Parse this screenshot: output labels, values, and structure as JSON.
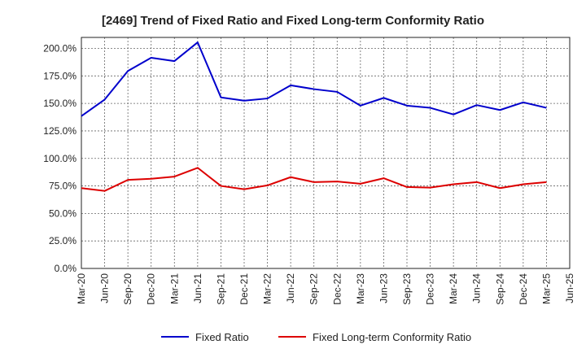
{
  "chart_data": {
    "type": "line",
    "title": "[2469]  Trend of Fixed Ratio and Fixed Long-term Conformity Ratio",
    "xlabel": "",
    "ylabel": "",
    "x_ticks": [
      "Mar-20",
      "Jun-20",
      "Sep-20",
      "Dec-20",
      "Mar-21",
      "Jun-21",
      "Sep-21",
      "Dec-21",
      "Mar-22",
      "Jun-22",
      "Sep-22",
      "Dec-22",
      "Mar-23",
      "Jun-23",
      "Sep-23",
      "Dec-23",
      "Mar-24",
      "Jun-24",
      "Sep-24",
      "Dec-24",
      "Mar-25",
      "Jun-25"
    ],
    "categories": [
      "Mar-20",
      "Jun-20",
      "Sep-20",
      "Dec-20",
      "Mar-21",
      "Jun-21",
      "Sep-21",
      "Dec-21",
      "Mar-22",
      "Jun-22",
      "Sep-22",
      "Dec-22",
      "Mar-23",
      "Jun-23",
      "Sep-23",
      "Dec-23",
      "Mar-24",
      "Jun-24",
      "Sep-24",
      "Dec-24",
      "Mar-25"
    ],
    "y_ticks": [
      "0.0%",
      "25.0%",
      "50.0%",
      "75.0%",
      "100.0%",
      "125.0%",
      "150.0%",
      "175.0%",
      "200.0%"
    ],
    "ylim": [
      0,
      210
    ],
    "grid": true,
    "legend_position": "bottom",
    "series": [
      {
        "name": "Fixed Ratio",
        "color": "#0000cc",
        "values": [
          138.5,
          153.5,
          179.5,
          191.5,
          188.5,
          205.5,
          155.5,
          152.5,
          154.5,
          166.5,
          163.0,
          160.5,
          148.0,
          155.0,
          148.0,
          146.0,
          140.0,
          148.5,
          144.0,
          151.0,
          146.0
        ]
      },
      {
        "name": "Fixed Long-term Conformity Ratio",
        "color": "#dd0000",
        "values": [
          73.0,
          70.5,
          80.5,
          81.5,
          83.5,
          91.5,
          75.0,
          72.0,
          75.5,
          83.0,
          78.5,
          79.0,
          77.0,
          82.0,
          74.0,
          73.5,
          76.5,
          78.5,
          73.0,
          76.5,
          78.5
        ]
      }
    ]
  }
}
